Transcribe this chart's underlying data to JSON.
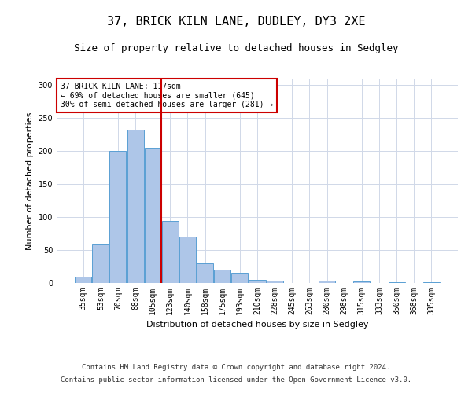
{
  "title": "37, BRICK KILN LANE, DUDLEY, DY3 2XE",
  "subtitle": "Size of property relative to detached houses in Sedgley",
  "xlabel": "Distribution of detached houses by size in Sedgley",
  "ylabel": "Number of detached properties",
  "categories": [
    "35sqm",
    "53sqm",
    "70sqm",
    "88sqm",
    "105sqm",
    "123sqm",
    "140sqm",
    "158sqm",
    "175sqm",
    "193sqm",
    "210sqm",
    "228sqm",
    "245sqm",
    "263sqm",
    "280sqm",
    "298sqm",
    "315sqm",
    "333sqm",
    "350sqm",
    "368sqm",
    "385sqm"
  ],
  "values": [
    9,
    58,
    200,
    233,
    205,
    94,
    70,
    30,
    20,
    15,
    5,
    4,
    0,
    0,
    4,
    0,
    2,
    0,
    1,
    0,
    1
  ],
  "bar_color": "#aec6e8",
  "bar_edge_color": "#5a9fd4",
  "vline_x_index": 5,
  "vline_color": "#cc0000",
  "annotation_line1": "37 BRICK KILN LANE: 117sqm",
  "annotation_line2": "← 69% of detached houses are smaller (645)",
  "annotation_line3": "30% of semi-detached houses are larger (281) →",
  "annotation_box_color": "#ffffff",
  "annotation_box_edge": "#cc0000",
  "ylim": [
    0,
    310
  ],
  "yticks": [
    0,
    50,
    100,
    150,
    200,
    250,
    300
  ],
  "footer1": "Contains HM Land Registry data © Crown copyright and database right 2024.",
  "footer2": "Contains public sector information licensed under the Open Government Licence v3.0.",
  "bg_color": "#ffffff",
  "grid_color": "#d0d8e8",
  "title_fontsize": 11,
  "subtitle_fontsize": 9,
  "axis_label_fontsize": 8,
  "tick_fontsize": 7,
  "annotation_fontsize": 7,
  "footer_fontsize": 6.5
}
